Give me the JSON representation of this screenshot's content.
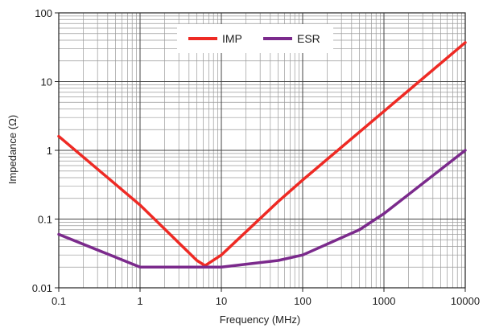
{
  "chart_data": {
    "type": "line",
    "title": "",
    "xlabel": "Frequency (MHz)",
    "ylabel": "Impedance (Ω)",
    "xscale": "log",
    "yscale": "log",
    "xlim": [
      0.1,
      10000
    ],
    "ylim": [
      0.01,
      100
    ],
    "grid": true,
    "legend_position": "top-center",
    "x_ticks": [
      "0.1",
      "1",
      "10",
      "100",
      "1000",
      "10000"
    ],
    "y_ticks": [
      "0.01",
      "0.1",
      "1",
      "10",
      "100"
    ],
    "series": [
      {
        "name": "IMP",
        "color": "#ee2a24",
        "points": [
          [
            0.1,
            1.6
          ],
          [
            1,
            0.16
          ],
          [
            5,
            0.025
          ],
          [
            6.3,
            0.021
          ],
          [
            10,
            0.03
          ],
          [
            50,
            0.18
          ],
          [
            100,
            0.37
          ],
          [
            1000,
            3.7
          ],
          [
            10000,
            37
          ]
        ]
      },
      {
        "name": "ESR",
        "color": "#7b2a8c",
        "points": [
          [
            0.1,
            0.06
          ],
          [
            1,
            0.02
          ],
          [
            10,
            0.02
          ],
          [
            50,
            0.025
          ],
          [
            100,
            0.03
          ],
          [
            500,
            0.07
          ],
          [
            1000,
            0.12
          ],
          [
            10000,
            1.0
          ]
        ]
      }
    ]
  }
}
